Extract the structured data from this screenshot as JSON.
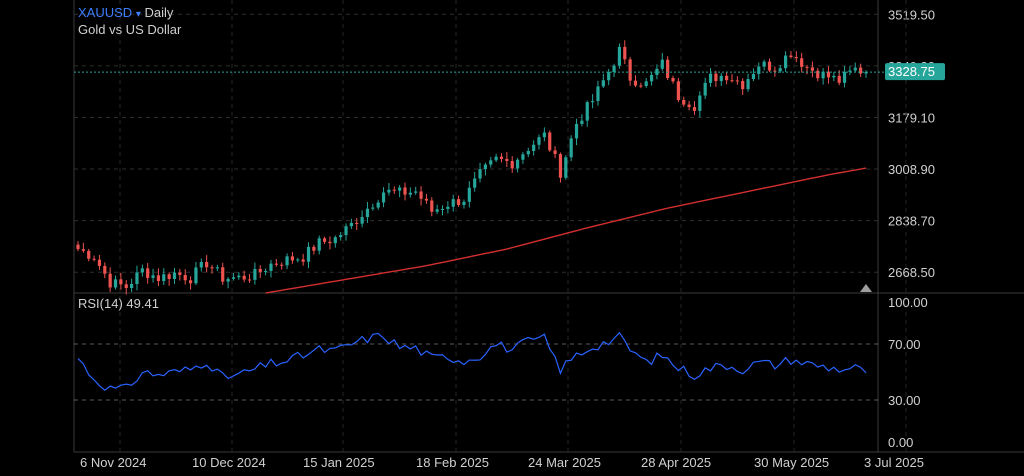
{
  "header": {
    "symbol": "XAUUSD",
    "dropdown_icon": "caret-down-icon",
    "timeframe": "Daily",
    "instrument_name": "Gold vs US Dollar"
  },
  "price_panel": {
    "price_axis_ticks": [
      "3519.50",
      "3349.30",
      "3179.10",
      "3008.90",
      "2838.70",
      "2668.50"
    ],
    "current_price_label": "3328.75",
    "current_price": 3328.75,
    "colors": {
      "up": "#26a69a",
      "down": "#ef5350",
      "ma": "#d32f2f",
      "price_line": "#26a69a"
    }
  },
  "rsi_panel": {
    "label": "RSI(14)",
    "value": "49.41",
    "axis_ticks": [
      "100.00",
      "70.00",
      "30.00",
      "0.00"
    ],
    "color": "#2962ff"
  },
  "time_axis": [
    "6 Nov 2024",
    "10 Dec 2024",
    "15 Jan 2025",
    "18 Feb 2025",
    "24 Mar 2025",
    "28 Apr 2025",
    "30 May 2025",
    "3 Jul 2025"
  ],
  "chart_data": [
    {
      "type": "candlestick",
      "title": "XAUUSD Daily",
      "subtitle": "Gold vs US Dollar",
      "y_range": [
        2600,
        3560
      ],
      "x_labels": [
        "6 Nov 2024",
        "10 Dec 2024",
        "15 Jan 2025",
        "18 Feb 2025",
        "24 Mar 2025",
        "28 Apr 2025",
        "30 May 2025",
        "3 Jul 2025"
      ],
      "close_path": [
        [
          0,
          2745
        ],
        [
          3,
          2720
        ],
        [
          6,
          2635
        ],
        [
          9,
          2620
        ],
        [
          12,
          2675
        ],
        [
          15,
          2650
        ],
        [
          18,
          2665
        ],
        [
          21,
          2650
        ],
        [
          24,
          2700
        ],
        [
          27,
          2650
        ],
        [
          30,
          2650
        ],
        [
          33,
          2660
        ],
        [
          36,
          2695
        ],
        [
          39,
          2710
        ],
        [
          42,
          2720
        ],
        [
          45,
          2765
        ],
        [
          48,
          2780
        ],
        [
          51,
          2825
        ],
        [
          54,
          2880
        ],
        [
          57,
          2935
        ],
        [
          60,
          2930
        ],
        [
          63,
          2935
        ],
        [
          66,
          2870
        ],
        [
          69,
          2895
        ],
        [
          72,
          2910
        ],
        [
          75,
          2990
        ],
        [
          78,
          3040
        ],
        [
          81,
          3030
        ],
        [
          84,
          3080
        ],
        [
          87,
          3120
        ],
        [
          90,
          3000
        ],
        [
          93,
          3160
        ],
        [
          96,
          3235
        ],
        [
          99,
          3330
        ],
        [
          101,
          3400
        ],
        [
          103,
          3310
        ],
        [
          106,
          3290
        ],
        [
          109,
          3355
        ],
        [
          112,
          3250
        ],
        [
          115,
          3220
        ],
        [
          118,
          3310
        ],
        [
          121,
          3320
        ],
        [
          124,
          3290
        ],
        [
          127,
          3355
        ],
        [
          130,
          3345
        ],
        [
          133,
          3395
        ],
        [
          136,
          3345
        ],
        [
          139,
          3320
        ],
        [
          142,
          3300
        ],
        [
          145,
          3338
        ],
        [
          147,
          3328.75
        ]
      ],
      "moving_average": [
        [
          35,
          2600
        ],
        [
          50,
          2645
        ],
        [
          65,
          2690
        ],
        [
          80,
          2745
        ],
        [
          95,
          2815
        ],
        [
          110,
          2880
        ],
        [
          125,
          2935
        ],
        [
          140,
          2990
        ],
        [
          147,
          3012
        ]
      ]
    },
    {
      "type": "line",
      "series": [
        {
          "name": "RSI(14)",
          "values_path": [
            [
              0,
              60
            ],
            [
              3,
              45
            ],
            [
              6,
              38
            ],
            [
              9,
              38
            ],
            [
              12,
              50
            ],
            [
              15,
              48
            ],
            [
              18,
              50
            ],
            [
              21,
              52
            ],
            [
              24,
              58
            ],
            [
              27,
              46
            ],
            [
              30,
              48
            ],
            [
              33,
              52
            ],
            [
              36,
              56
            ],
            [
              39,
              58
            ],
            [
              42,
              62
            ],
            [
              45,
              66
            ],
            [
              48,
              65
            ],
            [
              51,
              70
            ],
            [
              54,
              74
            ],
            [
              57,
              76
            ],
            [
              60,
              68
            ],
            [
              63,
              67
            ],
            [
              66,
              60
            ],
            [
              69,
              61
            ],
            [
              72,
              58
            ],
            [
              75,
              62
            ],
            [
              78,
              70
            ],
            [
              81,
              66
            ],
            [
              84,
              72
            ],
            [
              87,
              74
            ],
            [
              90,
              52
            ],
            [
              93,
              62
            ],
            [
              96,
              68
            ],
            [
              99,
              72
            ],
            [
              101,
              75
            ],
            [
              103,
              66
            ],
            [
              106,
              57
            ],
            [
              109,
              62
            ],
            [
              112,
              53
            ],
            [
              115,
              48
            ],
            [
              118,
              53
            ],
            [
              121,
              55
            ],
            [
              124,
              52
            ],
            [
              127,
              57
            ],
            [
              130,
              55
            ],
            [
              133,
              59
            ],
            [
              136,
              56
            ],
            [
              139,
              54
            ],
            [
              142,
              52
            ],
            [
              145,
              53
            ],
            [
              147,
              49.41
            ]
          ]
        }
      ],
      "ylim": [
        0,
        100
      ],
      "reference_lines": [
        70,
        30
      ]
    }
  ]
}
